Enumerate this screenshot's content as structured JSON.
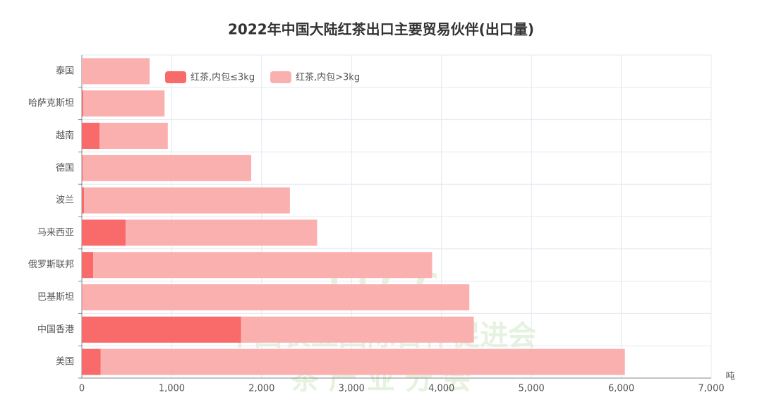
{
  "chart_data": {
    "type": "stacked-bar-horizontal",
    "title": "2022年中国大陆红茶出口主要贸易伙伴(出口量)",
    "x_unit": "吨",
    "watermark": [
      "T I C C",
      "中国农业国际合作促进会",
      "茶 产 业 分 会"
    ],
    "categories": [
      "美国",
      "中国香港",
      "巴基斯坦",
      "俄罗斯联邦",
      "马来西亚",
      "波兰",
      "德国",
      "越南",
      "哈萨克斯坦",
      "泰国"
    ],
    "series": [
      {
        "name": "红茶,内包≤3kg",
        "color": "#f96a6a",
        "values": [
          210,
          1770,
          5,
          126,
          487,
          24,
          8,
          196,
          15,
          0
        ]
      },
      {
        "name": "红茶,内包>3kg",
        "color": "#fbb0b0",
        "values": [
          5830,
          2590,
          4305,
          3770,
          2130,
          2290,
          1876,
          760,
          905,
          754
        ]
      }
    ],
    "xlim": [
      0,
      7000
    ],
    "xticks": [
      0,
      {
        "value": 1000,
        "label": "1,000"
      },
      {
        "value": 2000,
        "label": "2,000"
      },
      {
        "value": 3000,
        "label": "3,000"
      },
      {
        "value": 4000,
        "label": "4,000"
      },
      {
        "value": 5000,
        "label": "5,000"
      },
      {
        "value": 6000,
        "label": "6,000"
      },
      {
        "value": 7000,
        "label": "7,000"
      }
    ],
    "grid": true,
    "legend": "top"
  }
}
